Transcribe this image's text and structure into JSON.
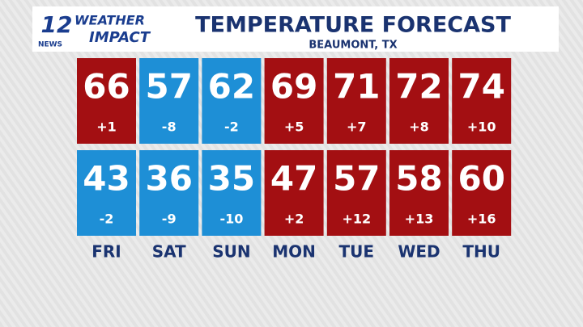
{
  "logo": {
    "number": "12",
    "news": "NEWS",
    "line1": "WEATHER",
    "line2": "IMPACT"
  },
  "header": {
    "title": "TEMPERATURE FORECAST",
    "subtitle": "BEAUMONT, TX"
  },
  "days": [
    "FRI",
    "SAT",
    "SUN",
    "MON",
    "TUE",
    "WED",
    "THU"
  ],
  "highs": [
    {
      "temp": 66,
      "departure": "+1",
      "color": "#a30f12"
    },
    {
      "temp": 57,
      "departure": "-8",
      "color": "#1e8fd6"
    },
    {
      "temp": 62,
      "departure": "-2",
      "color": "#1e8fd6"
    },
    {
      "temp": 69,
      "departure": "+5",
      "color": "#a30f12"
    },
    {
      "temp": 71,
      "departure": "+7",
      "color": "#a30f12"
    },
    {
      "temp": 72,
      "departure": "+8",
      "color": "#a30f12"
    },
    {
      "temp": 74,
      "departure": "+10",
      "color": "#a30f12"
    }
  ],
  "lows": [
    {
      "temp": 43,
      "departure": "-2",
      "color": "#1e8fd6"
    },
    {
      "temp": 36,
      "departure": "-9",
      "color": "#1e8fd6"
    },
    {
      "temp": 35,
      "departure": "-10",
      "color": "#1e8fd6"
    },
    {
      "temp": 47,
      "departure": "+2",
      "color": "#a30f12"
    },
    {
      "temp": 57,
      "departure": "+12",
      "color": "#a30f12"
    },
    {
      "temp": 58,
      "departure": "+13",
      "color": "#a30f12"
    },
    {
      "temp": 60,
      "departure": "+16",
      "color": "#a30f12"
    }
  ]
}
